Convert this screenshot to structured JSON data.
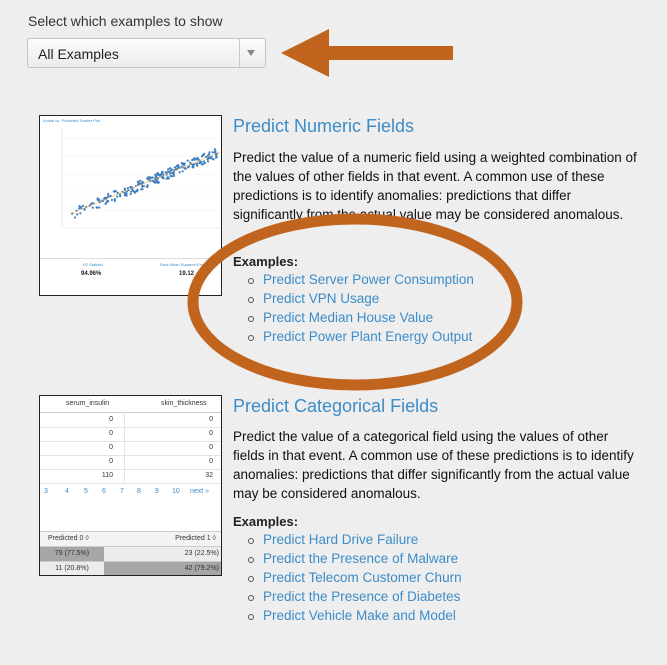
{
  "selector": {
    "label": "Select which examples to show",
    "value": "All Examples"
  },
  "annotation_color": "#c0641e",
  "link_color": "#3d8cc7",
  "numeric": {
    "title": "Predict Numeric Fields",
    "description": "Predict the value of a numeric field using a weighted combination of the values of other fields in that event. A common use of these predictions is to identify anomalies: predictions that differ significantly from the actual value may be considered anomalous.",
    "examples_label": "Examples:",
    "examples": [
      "Predict Server Power Consumption",
      "Predict VPN Usage",
      "Predict Median House Value",
      "Predict Power Plant Energy Output"
    ],
    "thumb": {
      "title": "Actual vs. Predicted Scatter Plot",
      "stat1_label": "R2 Statistic",
      "stat1_value": "94.96%",
      "stat2_label": "Root Mean Squared Error",
      "stat2_value": "19.12"
    }
  },
  "categorical": {
    "title": "Predict Categorical Fields",
    "description": "Predict the value of a categorical field using the values of other fields in that event. A common use of these predictions is to identify anomalies: predictions that differ significantly from the actual value may be considered anomalous.",
    "examples_label": "Examples:",
    "examples": [
      "Predict Hard Drive Failure",
      "Predict the Presence of Malware",
      "Predict Telecom Customer Churn",
      "Predict the Presence of Diabetes",
      "Predict Vehicle Make and Model"
    ],
    "thumb": {
      "col1": "serum_insulin",
      "col2": "skin_thickness",
      "rows": [
        [
          "0",
          "0"
        ],
        [
          "0",
          "0"
        ],
        [
          "0",
          "0"
        ],
        [
          "0",
          "0"
        ],
        [
          "110",
          "32"
        ]
      ],
      "pager": [
        "3",
        "4",
        "5",
        "6",
        "7",
        "8",
        "9",
        "10",
        "next »"
      ],
      "conf_head": [
        "Predicted 0 ◊",
        "Predicted 1 ◊"
      ],
      "conf_rows": [
        [
          "79 (77.5%)",
          "23 (22.5%)"
        ],
        [
          "11 (20.8%)",
          "42 (79.2%)"
        ]
      ]
    }
  }
}
